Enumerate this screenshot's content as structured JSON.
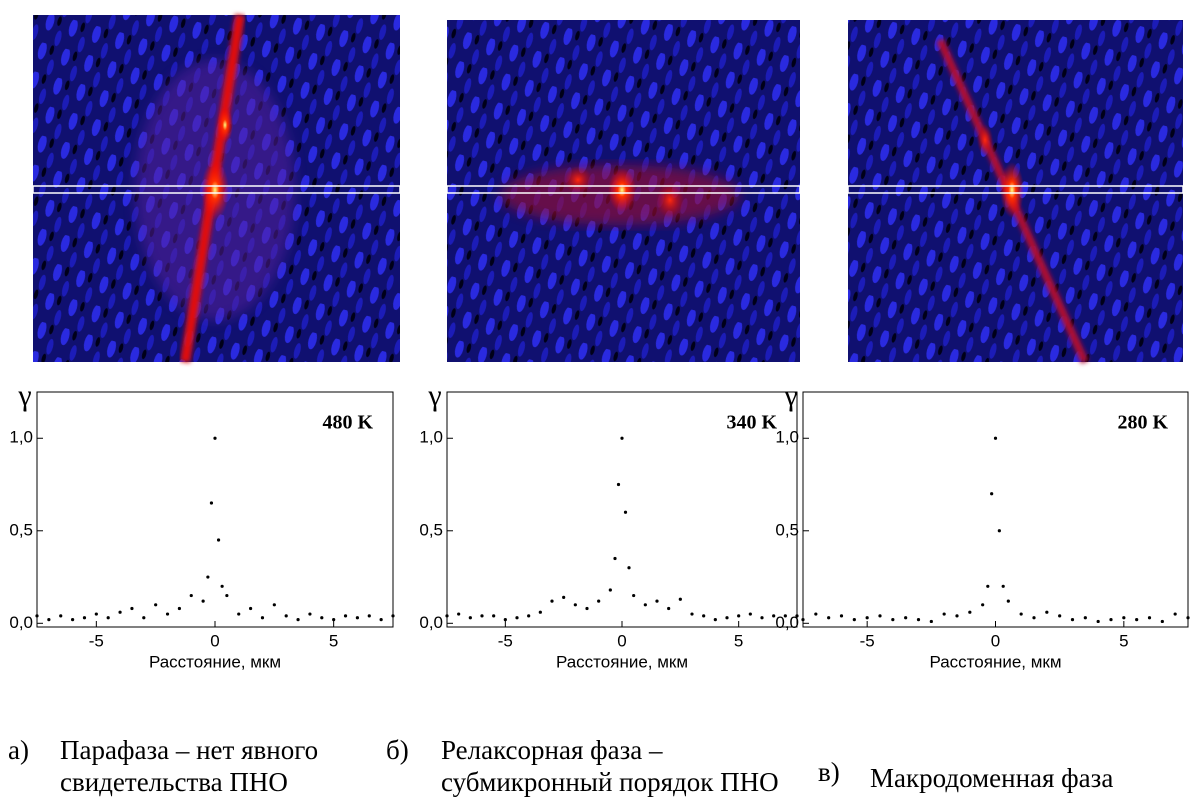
{
  "chart_data": [
    {
      "type": "scatter",
      "title": "480 K",
      "ylabel": "γ",
      "xlabel": "Расстояние, мкм",
      "x": [
        -7.5,
        -7,
        -6.5,
        -6,
        -5.5,
        -5,
        -4.5,
        -4,
        -3.5,
        -3,
        -2.5,
        -2,
        -1.5,
        -1,
        -0.5,
        -0.3,
        -0.15,
        0,
        0.15,
        0.3,
        0.5,
        1,
        1.5,
        2,
        2.5,
        3,
        3.5,
        4,
        4.5,
        5,
        5.5,
        6,
        6.5,
        7,
        7.5
      ],
      "series": [
        {
          "color": "#000000",
          "values": [
            0.04,
            0.02,
            0.04,
            0.02,
            0.03,
            0.05,
            0.03,
            0.06,
            0.08,
            0.03,
            0.1,
            0.05,
            0.08,
            0.15,
            0.12,
            0.25,
            0.65,
            1.0,
            0.45,
            0.2,
            0.15,
            0.05,
            0.08,
            0.03,
            0.1,
            0.04,
            0.02,
            0.05,
            0.03,
            0.02,
            0.04,
            0.03,
            0.04,
            0.02,
            0.04
          ]
        }
      ],
      "xlim": [
        -7.5,
        7.5
      ],
      "xticks": [
        -5,
        0,
        5
      ],
      "ylim": [
        -0.02,
        1.25
      ],
      "yticks": [
        {
          "value": 0,
          "label": "0,0"
        },
        {
          "value": 0.5,
          "label": "0,5"
        },
        {
          "value": 1,
          "label": "1,0"
        }
      ]
    },
    {
      "type": "scatter",
      "title": "340 K",
      "ylabel": "γ",
      "xlabel": "Расстояние, мкм",
      "x": [
        -7.5,
        -7,
        -6.5,
        -6,
        -5.5,
        -5,
        -4.5,
        -4,
        -3.5,
        -3,
        -2.5,
        -2,
        -1.5,
        -1,
        -0.5,
        -0.3,
        -0.15,
        0,
        0.15,
        0.3,
        0.5,
        1,
        1.5,
        2,
        2.5,
        3,
        3.5,
        4,
        4.5,
        5,
        5.5,
        6,
        6.5,
        7,
        7.5
      ],
      "series": [
        {
          "color": "#000000",
          "values": [
            0.04,
            0.05,
            0.03,
            0.04,
            0.04,
            0.02,
            0.03,
            0.04,
            0.06,
            0.12,
            0.14,
            0.1,
            0.08,
            0.12,
            0.18,
            0.35,
            0.75,
            1.0,
            0.6,
            0.3,
            0.15,
            0.1,
            0.12,
            0.08,
            0.13,
            0.05,
            0.04,
            0.02,
            0.03,
            0.04,
            0.05,
            0.03,
            0.04,
            0.04,
            0.04
          ]
        }
      ],
      "xlim": [
        -7.5,
        7.5
      ],
      "xticks": [
        -5,
        0,
        5
      ],
      "ylim": [
        -0.02,
        1.25
      ],
      "yticks": [
        {
          "value": 0,
          "label": "0,0"
        },
        {
          "value": 0.5,
          "label": "0,5"
        },
        {
          "value": 1,
          "label": "1,0"
        }
      ]
    },
    {
      "type": "scatter",
      "title": "280 K",
      "ylabel": "γ",
      "xlabel": "Расстояние, мкм",
      "x": [
        -7.5,
        -7,
        -6.5,
        -6,
        -5.5,
        -5,
        -4.5,
        -4,
        -3.5,
        -3,
        -2.5,
        -2,
        -1.5,
        -1,
        -0.5,
        -0.3,
        -0.15,
        0,
        0.15,
        0.3,
        0.5,
        1,
        1.5,
        2,
        2.5,
        3,
        3.5,
        4,
        4.5,
        5,
        5.5,
        6,
        6.5,
        7,
        7.5
      ],
      "series": [
        {
          "color": "#000000",
          "values": [
            0.02,
            0.05,
            0.03,
            0.04,
            0.02,
            0.03,
            0.04,
            0.02,
            0.03,
            0.02,
            0.01,
            0.05,
            0.04,
            0.06,
            0.1,
            0.2,
            0.7,
            1.0,
            0.5,
            0.2,
            0.12,
            0.05,
            0.03,
            0.06,
            0.04,
            0.02,
            0.03,
            0.01,
            0.02,
            0.03,
            0.02,
            0.03,
            0.01,
            0.05,
            0.03
          ]
        }
      ],
      "xlim": [
        -7.5,
        7.5
      ],
      "xticks": [
        -5,
        0,
        5
      ],
      "ylim": [
        -0.02,
        1.25
      ],
      "yticks": [
        {
          "value": 0,
          "label": "0,0"
        },
        {
          "value": 0.5,
          "label": "0,5"
        },
        {
          "value": 1,
          "label": "1,0"
        }
      ]
    }
  ],
  "captions": [
    {
      "label": "а)",
      "text": "Парафаза – нет явного свидетельства ПНО"
    },
    {
      "label": "б)",
      "text": "Релаксорная фаза – субмикронный порядок ПНО"
    },
    {
      "label": "в)",
      "text": "Макродоменная фаза"
    }
  ]
}
